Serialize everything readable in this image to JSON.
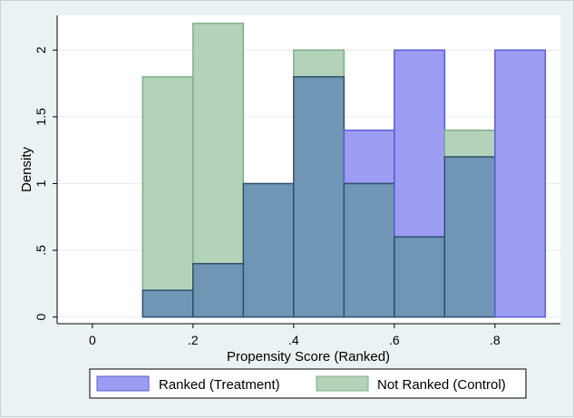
{
  "chart_data": {
    "type": "bar",
    "title": "",
    "xlabel": "Propensity Score (Ranked)",
    "ylabel": "Density",
    "xlim": [
      -0.07,
      0.93
    ],
    "ylim": [
      -0.05,
      2.26
    ],
    "xticks": [
      {
        "value": 0,
        "label": "0"
      },
      {
        "value": 0.2,
        "label": ".2"
      },
      {
        "value": 0.4,
        "label": ".4"
      },
      {
        "value": 0.6,
        "label": ".6"
      },
      {
        "value": 0.8,
        "label": ".8"
      }
    ],
    "yticks": [
      {
        "value": 0,
        "label": "0"
      },
      {
        "value": 0.5,
        "label": ".5"
      },
      {
        "value": 1,
        "label": "1"
      },
      {
        "value": 1.5,
        "label": "1.5"
      },
      {
        "value": 2,
        "label": "2"
      }
    ],
    "grid": true,
    "legend_position": "bottom",
    "bins": [
      [
        0.1,
        0.2
      ],
      [
        0.2,
        0.3
      ],
      [
        0.3,
        0.4
      ],
      [
        0.4,
        0.5
      ],
      [
        0.5,
        0.6
      ],
      [
        0.6,
        0.7
      ],
      [
        0.7,
        0.8
      ],
      [
        0.8,
        0.9
      ]
    ],
    "series": [
      {
        "name": "Ranked (Treatment)",
        "color": "#9d9cf3",
        "stroke": "#5c5bd6",
        "values": [
          0.2,
          0.4,
          1.0,
          1.8,
          1.4,
          2.0,
          1.2,
          2.0
        ]
      },
      {
        "name": "Not Ranked (Control)",
        "color": "#b2d3b9",
        "stroke": "#7fae8a",
        "values": [
          1.8,
          2.2,
          1.0,
          2.0,
          1.0,
          0.6,
          1.4,
          0.0
        ]
      }
    ],
    "overlap_color": "#7096b6",
    "overlap_stroke": "#2f4f6b"
  }
}
